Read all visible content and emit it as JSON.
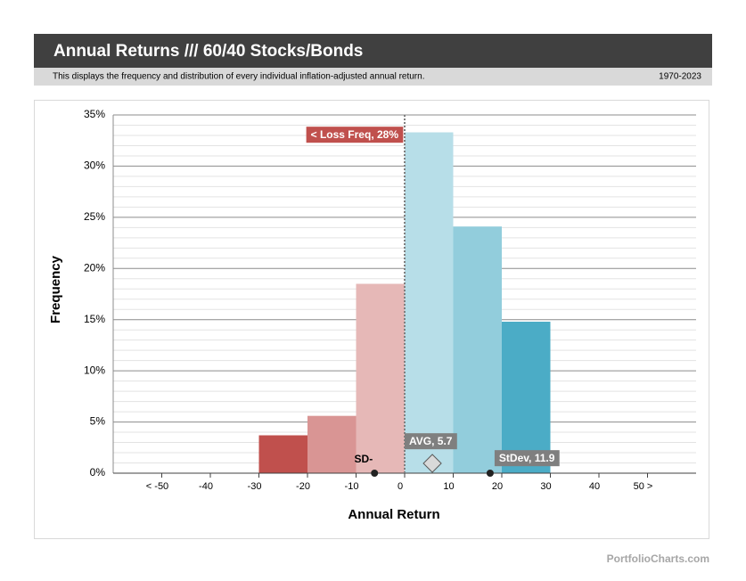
{
  "chart_data": {
    "type": "histogram",
    "title": "Annual Returns /// 60/40 Stocks/Bonds",
    "subtitle": "This displays the frequency and distribution of every individual inflation-adjusted annual return.",
    "date_range": "1970-2023",
    "xlabel": "Annual Return",
    "ylabel": "Frequency",
    "bins": [
      -30,
      -20,
      -10,
      0,
      10,
      20,
      30
    ],
    "values": [
      3.7,
      5.6,
      18.5,
      33.3,
      24.1,
      14.8
    ],
    "colors": [
      "#c0504d",
      "#d99594",
      "#e6b8b7",
      "#b7dee8",
      "#92cddc",
      "#4bacc6"
    ],
    "xlim": [
      -60,
      60
    ],
    "ylim": [
      0,
      35
    ],
    "xticks": [
      {
        "value": -50,
        "label": "< -50"
      },
      -40,
      -30,
      -20,
      -10,
      0,
      10,
      20,
      30,
      40,
      {
        "value": 50,
        "label": "50 >"
      }
    ],
    "yticks": [
      {
        "value": 0,
        "label": "0%"
      },
      {
        "value": 5,
        "label": "5%"
      },
      {
        "value": 10,
        "label": "10%"
      },
      {
        "value": 15,
        "label": "15%"
      },
      {
        "value": 20,
        "label": "20%"
      },
      {
        "value": 25,
        "label": "25%"
      },
      {
        "value": 30,
        "label": "30%"
      },
      {
        "value": 35,
        "label": "35%"
      }
    ],
    "minor_yticks": [
      1,
      2,
      3,
      4,
      6,
      7,
      8,
      9,
      11,
      12,
      13,
      14,
      16,
      17,
      18,
      19,
      21,
      22,
      23,
      24,
      26,
      27,
      28,
      29,
      31,
      32,
      33,
      34
    ],
    "grid": true,
    "reference_x": 0,
    "loss_label": "< Loss  Freq, 28%",
    "average": {
      "label": "AVG, 5.7",
      "value": 5.7
    },
    "stdev": {
      "label": "StDev, 11.9",
      "value": 11.9
    },
    "stdev_minus_label": "SD-"
  },
  "footer": "PortfolioCharts.com"
}
